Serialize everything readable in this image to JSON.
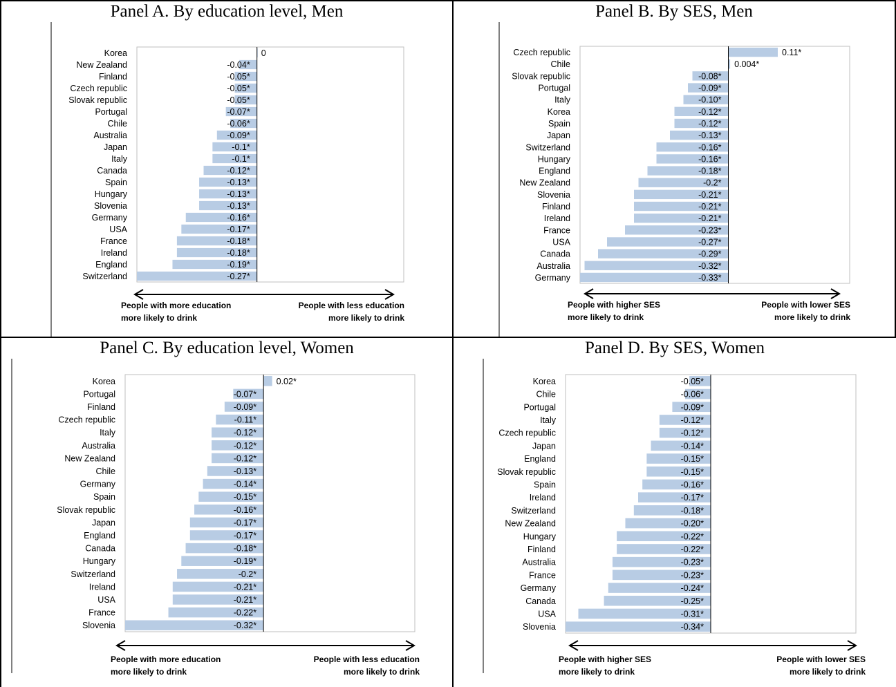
{
  "chart_data": [
    {
      "type": "bar",
      "title": "Panel A. By education level, Men",
      "categories": [
        "Korea",
        "New Zealand",
        "Finland",
        "Czech republic",
        "Slovak republic",
        "Portugal",
        "Chile",
        "Australia",
        "Japan",
        "Italy",
        "Canada",
        "Spain",
        "Hungary",
        "Slovenia",
        "Germany",
        "USA",
        "France",
        "Ireland",
        "England",
        "Switzerland"
      ],
      "values": [
        0,
        -0.04,
        -0.05,
        -0.05,
        -0.05,
        -0.07,
        -0.06,
        -0.09,
        -0.1,
        -0.1,
        -0.12,
        -0.13,
        -0.13,
        -0.13,
        -0.16,
        -0.17,
        -0.18,
        -0.18,
        -0.19,
        -0.27
      ],
      "data_labels": [
        "0",
        "-0.04*",
        "-0.05*",
        "-0.05*",
        "-0.05*",
        "-0.07*",
        "-0.06*",
        "-0.09*",
        "-0.1*",
        "-0.1*",
        "-0.12*",
        "-0.13*",
        "-0.13*",
        "-0.13*",
        "-0.16*",
        "-0.17*",
        "-0.18*",
        "-0.18*",
        "-0.19*",
        "-0.27*"
      ],
      "xlim": [
        -0.27,
        0.33
      ],
      "left_note": [
        "People with more education",
        "more likely to drink"
      ],
      "right_note": [
        "People with less education",
        "more likely to drink"
      ]
    },
    {
      "type": "bar",
      "title": "Panel B. By SES, Men",
      "categories": [
        "Czech republic",
        "Chile",
        "Slovak republic",
        "Portugal",
        "Italy",
        "Korea",
        "Spain",
        "Japan",
        "Switzerland",
        "Hungary",
        "England",
        "New Zealand",
        "Slovenia",
        "Finland",
        "Ireland",
        "France",
        "USA",
        "Canada",
        "Australia",
        "Germany"
      ],
      "values": [
        0.11,
        0.004,
        -0.08,
        -0.09,
        -0.1,
        -0.12,
        -0.12,
        -0.13,
        -0.16,
        -0.16,
        -0.18,
        -0.2,
        -0.21,
        -0.21,
        -0.21,
        -0.23,
        -0.27,
        -0.29,
        -0.32,
        -0.33
      ],
      "data_labels": [
        "0.11*",
        "0.004*",
        "-0.08*",
        "-0.09*",
        "-0.10*",
        "-0.12*",
        "-0.12*",
        "-0.13*",
        "-0.16*",
        "-0.16*",
        "-0.18*",
        "-0.2*",
        "-0.21*",
        "-0.21*",
        "-0.21*",
        "-0.23*",
        "-0.27*",
        "-0.29*",
        "-0.32*",
        "-0.33*"
      ],
      "xlim": [
        -0.33,
        0.27
      ],
      "left_note": [
        "People with higher SES",
        "more likely to drink"
      ],
      "right_note": [
        "People with lower SES",
        "more likely to drink"
      ]
    },
    {
      "type": "bar",
      "title": "Panel C. By education level, Women",
      "categories": [
        "Korea",
        "Portugal",
        "Finland",
        "Czech republic",
        "Italy",
        "Australia",
        "New Zealand",
        "Chile",
        "Germany",
        "Spain",
        "Slovak republic",
        "Japan",
        "England",
        "Canada",
        "Hungary",
        "Switzerland",
        "Ireland",
        "USA",
        "France",
        "Slovenia"
      ],
      "values": [
        0.02,
        -0.07,
        -0.09,
        -0.11,
        -0.12,
        -0.12,
        -0.12,
        -0.13,
        -0.14,
        -0.15,
        -0.16,
        -0.17,
        -0.17,
        -0.18,
        -0.19,
        -0.2,
        -0.21,
        -0.21,
        -0.22,
        -0.32
      ],
      "data_labels": [
        "0.02*",
        "-0.07*",
        "-0.09*",
        "-0.11*",
        "-0.12*",
        "-0.12*",
        "-0.12*",
        "-0.13*",
        "-0.14*",
        "-0.15*",
        "-0.16*",
        "-0.17*",
        "-0.17*",
        "-0.18*",
        "-0.19*",
        "-0.2*",
        "-0.21*",
        "-0.21*",
        "-0.22*",
        "-0.32*"
      ],
      "xlim": [
        -0.32,
        0.35
      ],
      "left_note": [
        "People with more education",
        "more likely to drink"
      ],
      "right_note": [
        "People with less education",
        "more likely to drink"
      ]
    },
    {
      "type": "bar",
      "title": "Panel D. By SES, Women",
      "categories": [
        "Korea",
        "Chile",
        "Portugal",
        "Italy",
        "Czech republic",
        "Japan",
        "England",
        "Slovak republic",
        "Spain",
        "Ireland",
        "Switzerland",
        "New Zealand",
        "Hungary",
        "Finland",
        "Australia",
        "France",
        "Germany",
        "Canada",
        "USA",
        "Slovenia"
      ],
      "values": [
        -0.05,
        -0.06,
        -0.09,
        -0.12,
        -0.12,
        -0.14,
        -0.15,
        -0.15,
        -0.16,
        -0.17,
        -0.18,
        -0.2,
        -0.22,
        -0.22,
        -0.23,
        -0.23,
        -0.24,
        -0.25,
        -0.31,
        -0.34
      ],
      "data_labels": [
        "-0.05*",
        "-0.06*",
        "-0.09*",
        "-0.12*",
        "-0.12*",
        "-0.14*",
        "-0.15*",
        "-0.15*",
        "-0.16*",
        "-0.17*",
        "-0.18*",
        "-0.20*",
        "-0.22*",
        "-0.22*",
        "-0.23*",
        "-0.23*",
        "-0.24*",
        "-0.25*",
        "-0.31*",
        "-0.34*"
      ],
      "xlim": [
        -0.34,
        0.34
      ],
      "left_note": [
        "People with higher SES",
        "more likely to drink"
      ],
      "right_note": [
        "People with lower SES",
        "more likely to drink"
      ]
    }
  ],
  "colors": {
    "bar": "#b8cce4",
    "axis": "#000000",
    "frame": "#bfbfbf"
  }
}
